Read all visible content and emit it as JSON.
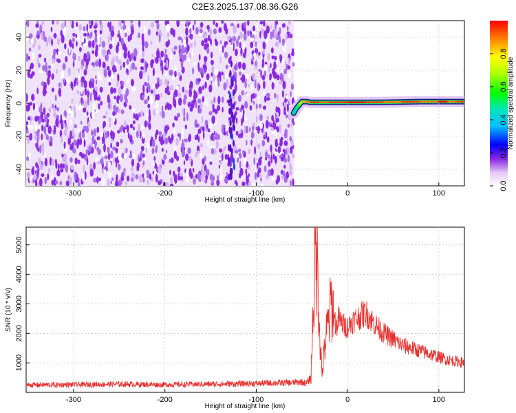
{
  "title": "C2E3.2025.137.08.36.G26",
  "chart_data": [
    {
      "type": "heatmap",
      "xlabel": "Height of straight line (km)",
      "ylabel": "Frequency (Hz)",
      "xlim": [
        -352,
        128
      ],
      "ylim": [
        -50,
        50
      ],
      "x_ticks": [
        -300,
        -200,
        -100,
        0,
        100
      ],
      "y_ticks": [
        -40,
        -20,
        0,
        20,
        40
      ],
      "noise_region_x": [
        -352,
        -59
      ],
      "colormap_note": "rainbow: white/violet (0) to red (1)",
      "signal_track": {
        "x": [
          -59,
          -56,
          -53,
          -50,
          -45,
          -40,
          -30,
          -20,
          -10,
          0,
          20,
          40,
          60,
          80,
          100,
          110,
          120,
          128
        ],
        "freq": [
          -6,
          -3,
          -1,
          1,
          1,
          0.5,
          0.5,
          0.5,
          0.5,
          0.5,
          0.5,
          0.6,
          0.8,
          1,
          1,
          1,
          1,
          1
        ],
        "amplitude": [
          0.4,
          0.5,
          0.7,
          0.85,
          0.9,
          0.95,
          0.9,
          0.95,
          0.95,
          1.0,
          0.95,
          0.9,
          0.95,
          0.9,
          1.0,
          0.9,
          0.95,
          0.9
        ]
      },
      "colorbar": {
        "label": "Normalized spectral amplitude",
        "range": [
          0,
          1
        ],
        "ticks": [
          "0.0",
          "0.2",
          "0.4",
          "0.6",
          "0.8"
        ]
      },
      "grid": true
    },
    {
      "type": "line",
      "xlabel": "Height of straight line (km)",
      "ylabel": "SNR (10 * v/v)",
      "xlim": [
        -352,
        128
      ],
      "ylim": [
        0,
        5600
      ],
      "x_ticks": [
        -300,
        -200,
        -100,
        0,
        100
      ],
      "y_ticks": [
        1000,
        2000,
        3000,
        4000,
        5000
      ],
      "series": [
        {
          "color": "#e8312f",
          "x": [
            -352,
            -300,
            -250,
            -200,
            -150,
            -100,
            -80,
            -60,
            -50,
            -45,
            -40,
            -38,
            -35,
            -33,
            -32,
            -30,
            -28,
            -25,
            -22,
            -20,
            -18,
            -15,
            -12,
            -10,
            -5,
            0,
            5,
            10,
            15,
            20,
            25,
            30,
            40,
            50,
            60,
            70,
            80,
            90,
            100,
            110,
            120,
            128
          ],
          "values": [
            250,
            260,
            280,
            260,
            280,
            300,
            320,
            330,
            350,
            300,
            500,
            2500,
            4800,
            4200,
            3500,
            1800,
            600,
            1500,
            2200,
            2400,
            3100,
            2600,
            2200,
            2500,
            2300,
            2200,
            2400,
            2500,
            2600,
            2700,
            2500,
            2300,
            2000,
            1800,
            1600,
            1500,
            1400,
            1300,
            1200,
            1100,
            1050,
            1000
          ]
        }
      ],
      "grid": true
    }
  ]
}
